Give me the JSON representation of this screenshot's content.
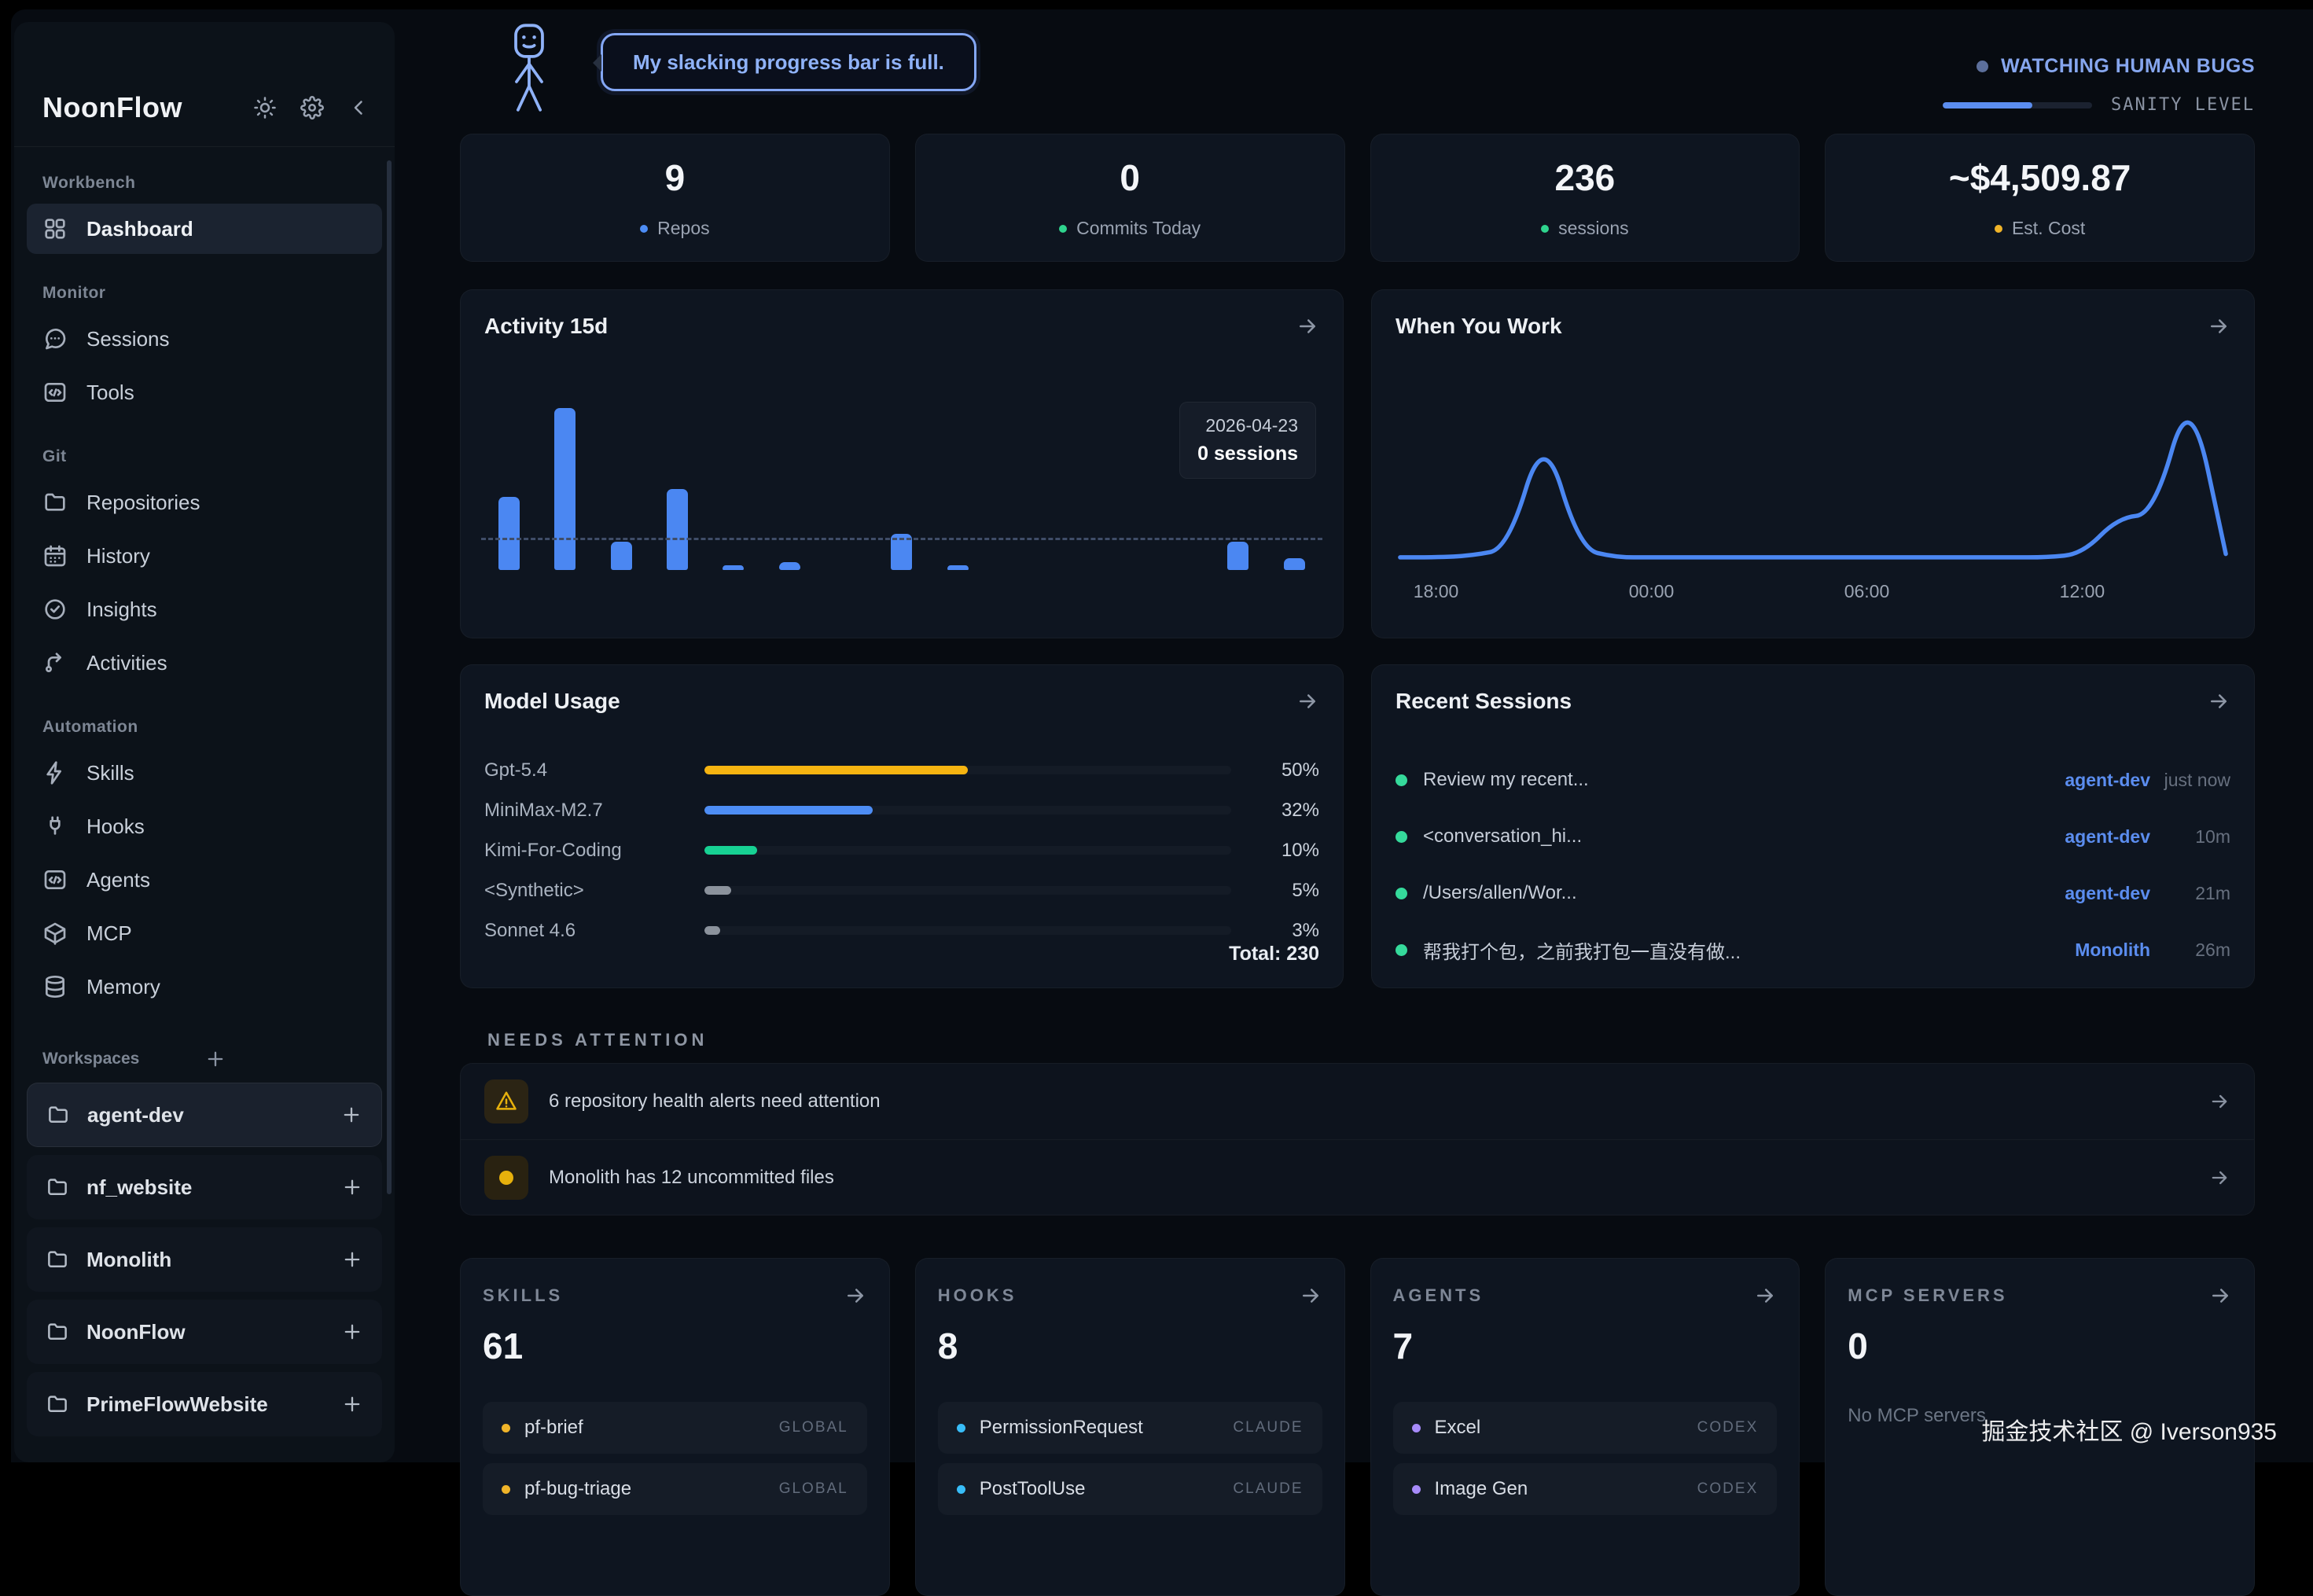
{
  "app": {
    "title": "NoonFlow"
  },
  "sidebar": {
    "sections": [
      {
        "label": "Workbench",
        "items": [
          {
            "label": "Dashboard"
          }
        ]
      },
      {
        "label": "Monitor",
        "items": [
          {
            "label": "Sessions"
          },
          {
            "label": "Tools"
          }
        ]
      },
      {
        "label": "Git",
        "items": [
          {
            "label": "Repositories"
          },
          {
            "label": "History"
          },
          {
            "label": "Insights"
          },
          {
            "label": "Activities"
          }
        ]
      },
      {
        "label": "Automation",
        "items": [
          {
            "label": "Skills"
          },
          {
            "label": "Hooks"
          },
          {
            "label": "Agents"
          },
          {
            "label": "MCP"
          },
          {
            "label": "Memory"
          }
        ]
      }
    ],
    "workspaces": {
      "label": "Workspaces",
      "items": [
        {
          "name": "agent-dev"
        },
        {
          "name": "nf_website"
        },
        {
          "name": "Monolith"
        },
        {
          "name": "NoonFlow"
        },
        {
          "name": "PrimeFlowWebsite"
        }
      ]
    }
  },
  "header": {
    "mascot_quote": "My slacking progress bar is full.",
    "status_text": "WATCHING HUMAN BUGS",
    "sanity_label": "SANITY LEVEL",
    "sanity_percent": 60
  },
  "stats": [
    {
      "value": "9",
      "label": "Repos",
      "dot_color": "#4d8df5"
    },
    {
      "value": "0",
      "label": "Commits Today",
      "dot_color": "#2fd48e"
    },
    {
      "value": "236",
      "label": "sessions",
      "dot_color": "#2fd48e"
    },
    {
      "value": "~$4,509.87",
      "label": "Est. Cost",
      "dot_color": "#f0b429"
    }
  ],
  "chart_data": [
    {
      "type": "bar",
      "title": "Activity 15d",
      "unit": "sessions",
      "values": [
        18,
        40,
        7,
        20,
        1,
        2,
        0,
        9,
        1,
        0,
        0,
        0,
        0,
        7,
        3
      ],
      "ymax": 40,
      "average": 7.3,
      "average_line": true,
      "bar_color": "#4b87f2",
      "tooltip": {
        "date": "2026-04-23",
        "label": "0 sessions"
      }
    },
    {
      "type": "line",
      "title": "When You Work",
      "x_hours": [
        "17:00",
        "18:00",
        "19:00",
        "20:00",
        "21:00",
        "22:00",
        "23:00",
        "00:00",
        "01:00",
        "02:00",
        "03:00",
        "04:00",
        "05:00",
        "06:00",
        "07:00",
        "08:00",
        "09:00",
        "10:00",
        "11:00",
        "12:00",
        "13:00",
        "14:00",
        "15:00",
        "16:00"
      ],
      "values": [
        1,
        1,
        2,
        6,
        75,
        6,
        1,
        1,
        1,
        1,
        1,
        1,
        1,
        1,
        1,
        1,
        1,
        1,
        1,
        3,
        24,
        26,
        100,
        3
      ],
      "ymax": 108,
      "x_tick_labels": [
        "18:00",
        "00:00",
        "06:00",
        "12:00"
      ],
      "x_tick_indices": [
        1,
        7,
        13,
        19
      ],
      "line_color": "#4b87f2",
      "grid": false,
      "legend": false
    }
  ],
  "model_usage": {
    "title": "Model Usage",
    "total_label": "Total: 230",
    "rows": [
      {
        "name": "Gpt-5.4",
        "percent": 50,
        "percent_label": "50%",
        "color": "#f6b411"
      },
      {
        "name": "MiniMax-M2.7",
        "percent": 32,
        "percent_label": "32%",
        "color": "#4d8df5"
      },
      {
        "name": "Kimi-For-Coding",
        "percent": 10,
        "percent_label": "10%",
        "color": "#17d193"
      },
      {
        "name": "<Synthetic>",
        "percent": 5,
        "percent_label": "5%",
        "color": "#8b929c"
      },
      {
        "name": "Sonnet 4.6",
        "percent": 3,
        "percent_label": "3%",
        "color": "#8b929c"
      }
    ]
  },
  "recent_sessions": {
    "title": "Recent Sessions",
    "rows": [
      {
        "title": "Review my recent...",
        "workspace": "agent-dev",
        "time": "just now"
      },
      {
        "title": "<conversation_hi...",
        "workspace": "agent-dev",
        "time": "10m"
      },
      {
        "title": "/Users/allen/Wor...",
        "workspace": "agent-dev",
        "time": "21m"
      },
      {
        "title": "帮我打个包，之前我打包一直没有做...",
        "workspace": "Monolith",
        "time": "26m"
      }
    ]
  },
  "needs_attention": {
    "label": "NEEDS ATTENTION",
    "rows": [
      {
        "icon": "warning-triangle",
        "text": "6 repository health alerts need attention"
      },
      {
        "icon": "yellow-dot",
        "text": "Monolith has 12 uncommitted files"
      }
    ]
  },
  "summary_cards": [
    {
      "label": "SKILLS",
      "count": "61",
      "items": [
        {
          "name": "pf-brief",
          "tag": "GLOBAL",
          "dot_color": "#f0b429"
        },
        {
          "name": "pf-bug-triage",
          "tag": "GLOBAL",
          "dot_color": "#f0b429"
        }
      ]
    },
    {
      "label": "HOOKS",
      "count": "8",
      "items": [
        {
          "name": "PermissionRequest",
          "tag": "CLAUDE",
          "dot_color": "#38bdf8"
        },
        {
          "name": "PostToolUse",
          "tag": "CLAUDE",
          "dot_color": "#38bdf8"
        }
      ]
    },
    {
      "label": "AGENTS",
      "count": "7",
      "items": [
        {
          "name": "Excel",
          "tag": "CODEX",
          "dot_color": "#a78bfa"
        },
        {
          "name": "Image Gen",
          "tag": "CODEX",
          "dot_color": "#a78bfa"
        }
      ]
    },
    {
      "label": "MCP SERVERS",
      "count": "0",
      "empty_text": "No MCP servers",
      "items": []
    }
  ],
  "watermark": "掘金技术社区 @ Iverson935"
}
